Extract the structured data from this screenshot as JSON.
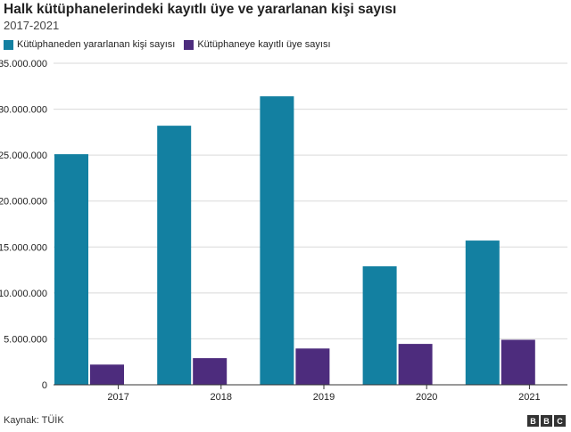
{
  "chart_data": {
    "type": "bar",
    "title": "Halk kütüphanelerindeki kayıtlı üye ve yararlanan kişi sayısı",
    "subtitle": "2017-2021",
    "categories": [
      "2017",
      "2018",
      "2019",
      "2020",
      "2021"
    ],
    "series": [
      {
        "name": "Kütüphaneden yararlanan kişi sayısı",
        "color": "#1380a1",
        "values": [
          25100000,
          28200000,
          31400000,
          12900000,
          15700000
        ]
      },
      {
        "name": "Kütüphaneye kayıtlı üye sayısı",
        "color": "#4d2c7d",
        "values": [
          2200000,
          2900000,
          3950000,
          4450000,
          4900000
        ]
      }
    ],
    "ylim": [
      0,
      35000000
    ],
    "yticks": [
      0,
      5000000,
      10000000,
      15000000,
      20000000,
      25000000,
      30000000,
      35000000
    ],
    "ytick_labels": [
      "0",
      "5.000.000",
      "10.000.000",
      "15.000.000",
      "20.000.000",
      "25.000.000",
      "30.000.000",
      "35.000.000"
    ],
    "grid": true,
    "legend_position": "top-left",
    "source": "Kaynak: TÜİK",
    "logo_letters": [
      "B",
      "B",
      "C"
    ]
  }
}
